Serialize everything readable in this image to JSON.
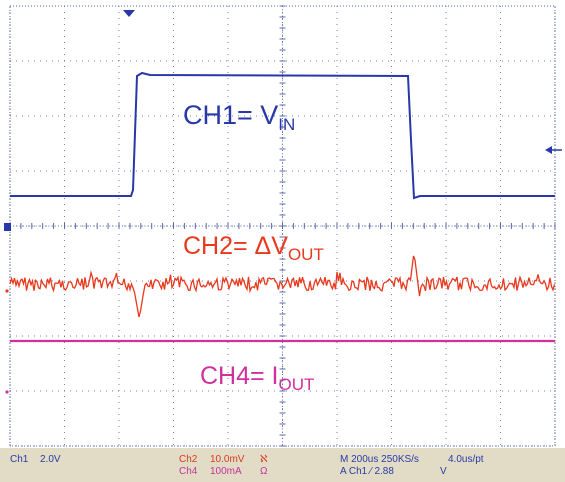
{
  "labels": {
    "ch1_prefix": "CH1= V",
    "ch1_sub": "IN",
    "ch2_prefix": "CH2= ΔV",
    "ch2_sub": "OUT",
    "ch4_prefix": "CH4= I",
    "ch4_sub": "OUT"
  },
  "status": {
    "ch1_name": "Ch1",
    "ch1_scale": "2.0V",
    "ch2_name": "Ch2",
    "ch2_scale": "10.0mV",
    "ch2_coupling": "ℵ",
    "ch4_name": "Ch4",
    "ch4_scale": "100mA",
    "ch4_coupling": "Ω",
    "timebase": "M 200us 250KS/s",
    "sample": "4.0us/pt",
    "trigger": "A  Ch1  ⁄  2.88",
    "trigger_unit": "V"
  },
  "colors": {
    "ch1": "#2838a8",
    "ch2": "#e8391e",
    "ch4": "#d0309c",
    "grid": "#5c6aa8",
    "statusbar": "#e2dcc6"
  },
  "icons": {
    "trigger_position": "triangle-down-icon",
    "ch1_ground": "marker-1-icon",
    "trigger_level": "arrow-left-icon"
  }
}
